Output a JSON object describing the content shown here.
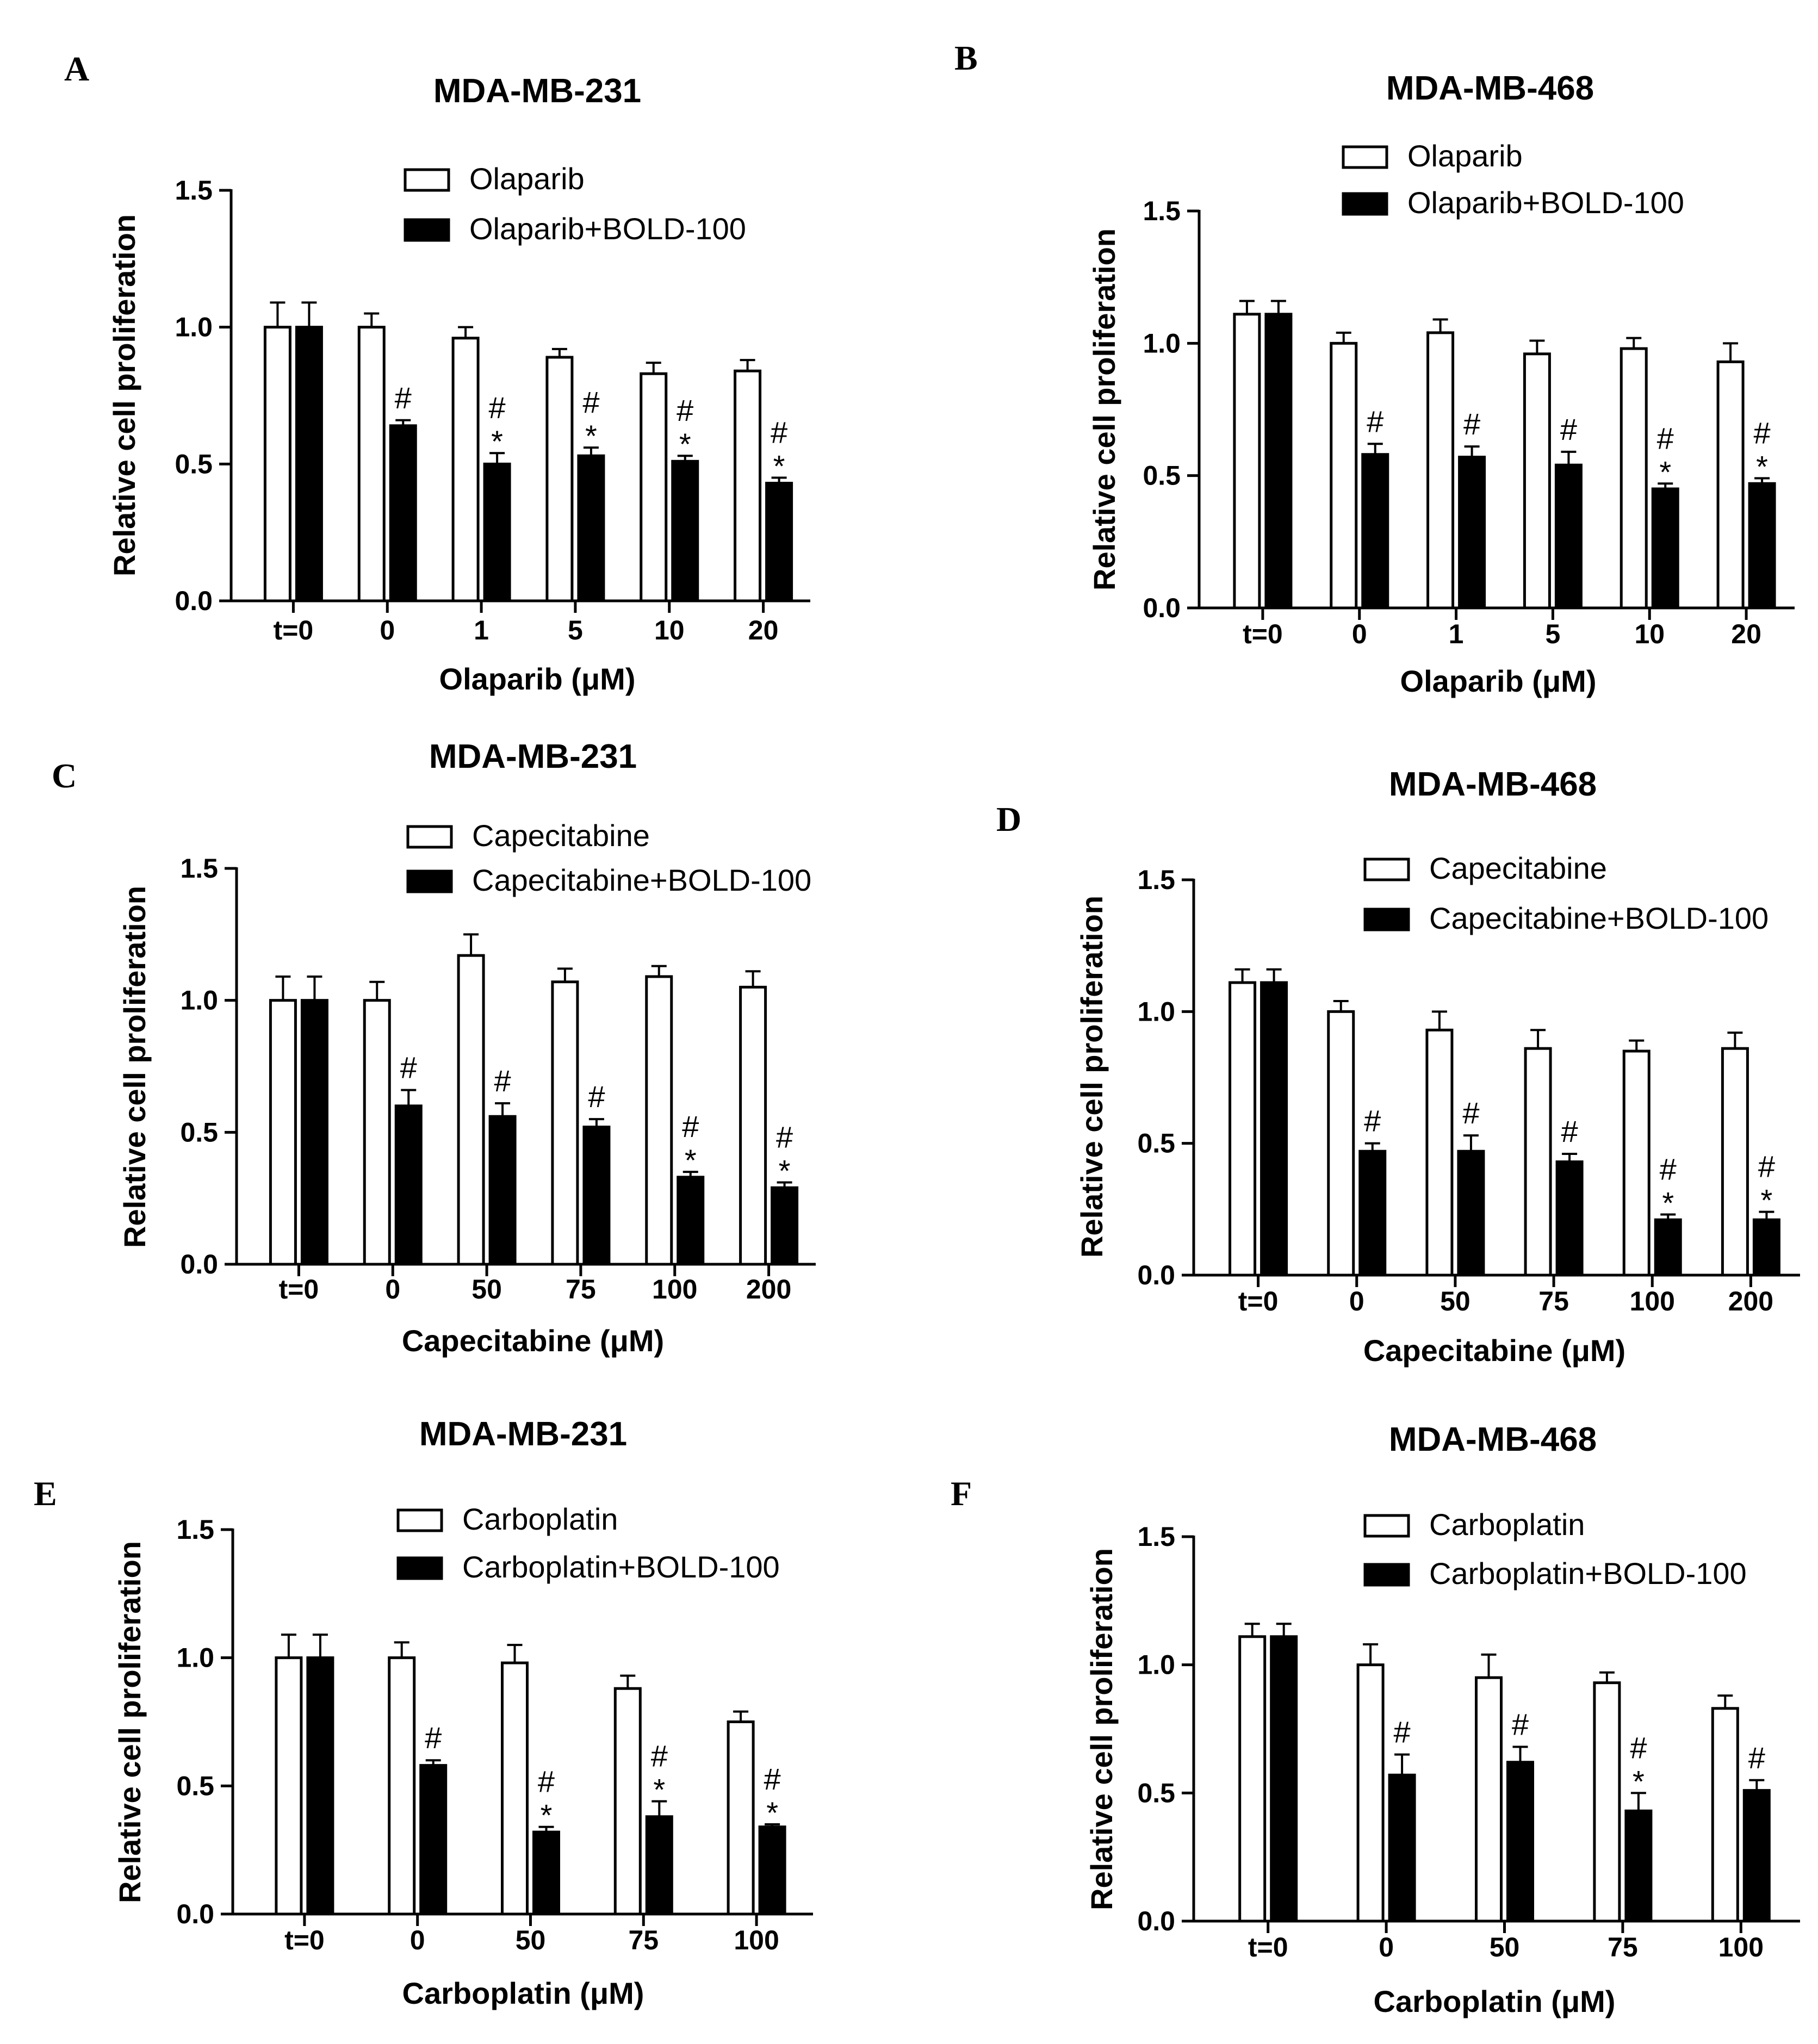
{
  "chart_data": [
    {
      "panel": "A",
      "type": "bar",
      "title": "MDA-MB-231",
      "xlabel": "Olaparib (μM)",
      "ylabel": "Relative cell proliferation",
      "ylim": [
        0,
        1.5
      ],
      "yticks": [
        "0.0",
        "0.5",
        "1.0",
        "1.5"
      ],
      "categories": [
        "t=0",
        "0",
        "1",
        "5",
        "10",
        "20"
      ],
      "series": [
        {
          "name": "Olaparib",
          "fill": "#ffffff",
          "values": [
            1.0,
            1.0,
            0.96,
            0.89,
            0.83,
            0.84
          ],
          "errors": [
            0.09,
            0.05,
            0.04,
            0.03,
            0.04,
            0.04
          ]
        },
        {
          "name": "Olaparib+BOLD-100",
          "fill": "#000000",
          "values": [
            1.0,
            0.64,
            0.5,
            0.53,
            0.51,
            0.43
          ],
          "errors": [
            0.09,
            0.02,
            0.04,
            0.03,
            0.02,
            0.02
          ]
        }
      ],
      "annotations": [
        "",
        "#",
        "#\n*",
        "#\n*",
        "#\n*",
        "#\n*"
      ]
    },
    {
      "panel": "B",
      "type": "bar",
      "title": "MDA-MB-468",
      "xlabel": "Olaparib (μM)",
      "ylabel": "Relative cell proliferation",
      "ylim": [
        0,
        1.5
      ],
      "yticks": [
        "0.0",
        "0.5",
        "1.0",
        "1.5"
      ],
      "categories": [
        "t=0",
        "0",
        "1",
        "5",
        "10",
        "20"
      ],
      "series": [
        {
          "name": "Olaparib",
          "fill": "#ffffff",
          "values": [
            1.11,
            1.0,
            1.04,
            0.96,
            0.98,
            0.93
          ],
          "errors": [
            0.05,
            0.04,
            0.05,
            0.05,
            0.04,
            0.07
          ]
        },
        {
          "name": "Olaparib+BOLD-100",
          "fill": "#000000",
          "values": [
            1.11,
            0.58,
            0.57,
            0.54,
            0.45,
            0.47
          ],
          "errors": [
            0.05,
            0.04,
            0.04,
            0.05,
            0.02,
            0.02
          ]
        }
      ],
      "annotations": [
        "",
        "#",
        "#",
        "#",
        "#\n*",
        "#\n*"
      ]
    },
    {
      "panel": "C",
      "type": "bar",
      "title": "MDA-MB-231",
      "xlabel": "Capecitabine (μM)",
      "ylabel": "Relative cell proliferation",
      "ylim": [
        0,
        1.5
      ],
      "yticks": [
        "0.0",
        "0.5",
        "1.0",
        "1.5"
      ],
      "categories": [
        "t=0",
        "0",
        "50",
        "75",
        "100",
        "200"
      ],
      "series": [
        {
          "name": "Capecitabine",
          "fill": "#ffffff",
          "values": [
            1.0,
            1.0,
            1.17,
            1.07,
            1.09,
            1.05
          ],
          "errors": [
            0.09,
            0.07,
            0.08,
            0.05,
            0.04,
            0.06
          ]
        },
        {
          "name": "Capecitabine+BOLD-100",
          "fill": "#000000",
          "values": [
            1.0,
            0.6,
            0.56,
            0.52,
            0.33,
            0.29
          ],
          "errors": [
            0.09,
            0.06,
            0.05,
            0.03,
            0.02,
            0.02
          ]
        }
      ],
      "annotations": [
        "",
        "#",
        "#",
        "#",
        "#\n*",
        "#\n*"
      ]
    },
    {
      "panel": "D",
      "type": "bar",
      "title": "MDA-MB-468",
      "xlabel": "Capecitabine (μM)",
      "ylabel": "Relative cell proliferation",
      "ylim": [
        0,
        1.5
      ],
      "yticks": [
        "0.0",
        "0.5",
        "1.0",
        "1.5"
      ],
      "categories": [
        "t=0",
        "0",
        "50",
        "75",
        "100",
        "200"
      ],
      "series": [
        {
          "name": "Capecitabine",
          "fill": "#ffffff",
          "values": [
            1.11,
            1.0,
            0.93,
            0.86,
            0.85,
            0.86
          ],
          "errors": [
            0.05,
            0.04,
            0.07,
            0.07,
            0.04,
            0.06
          ]
        },
        {
          "name": "Capecitabine+BOLD-100",
          "fill": "#000000",
          "values": [
            1.11,
            0.47,
            0.47,
            0.43,
            0.21,
            0.21
          ],
          "errors": [
            0.05,
            0.03,
            0.06,
            0.03,
            0.02,
            0.03
          ]
        }
      ],
      "annotations": [
        "",
        "#",
        "#",
        "#",
        "#\n*",
        "#\n*"
      ]
    },
    {
      "panel": "E",
      "type": "bar",
      "title": "MDA-MB-231",
      "xlabel": "Carboplatin (μM)",
      "ylabel": "Relative cell proliferation",
      "ylim": [
        0,
        1.5
      ],
      "yticks": [
        "0.0",
        "0.5",
        "1.0",
        "1.5"
      ],
      "categories": [
        "t=0",
        "0",
        "50",
        "75",
        "100"
      ],
      "series": [
        {
          "name": "Carboplatin",
          "fill": "#ffffff",
          "values": [
            1.0,
            1.0,
            0.98,
            0.88,
            0.75
          ],
          "errors": [
            0.09,
            0.06,
            0.07,
            0.05,
            0.04
          ]
        },
        {
          "name": "Carboplatin+BOLD-100",
          "fill": "#000000",
          "values": [
            1.0,
            0.58,
            0.32,
            0.38,
            0.34
          ],
          "errors": [
            0.09,
            0.02,
            0.02,
            0.06,
            0.01
          ]
        }
      ],
      "annotations": [
        "",
        "#",
        "#\n*",
        "#\n*",
        "#\n*"
      ]
    },
    {
      "panel": "F",
      "type": "bar",
      "title": "MDA-MB-468",
      "xlabel": "Carboplatin (μM)",
      "ylabel": "Relative cell proliferation",
      "ylim": [
        0,
        1.5
      ],
      "yticks": [
        "0.0",
        "0.5",
        "1.0",
        "1.5"
      ],
      "categories": [
        "t=0",
        "0",
        "50",
        "75",
        "100"
      ],
      "series": [
        {
          "name": "Carboplatin",
          "fill": "#ffffff",
          "values": [
            1.11,
            1.0,
            0.95,
            0.93,
            0.83
          ],
          "errors": [
            0.05,
            0.08,
            0.09,
            0.04,
            0.05
          ]
        },
        {
          "name": "Carboplatin+BOLD-100",
          "fill": "#000000",
          "values": [
            1.11,
            0.57,
            0.62,
            0.43,
            0.51
          ],
          "errors": [
            0.05,
            0.08,
            0.06,
            0.07,
            0.04
          ]
        }
      ],
      "annotations": [
        "",
        "#",
        "#",
        "#\n*",
        "#"
      ]
    }
  ]
}
